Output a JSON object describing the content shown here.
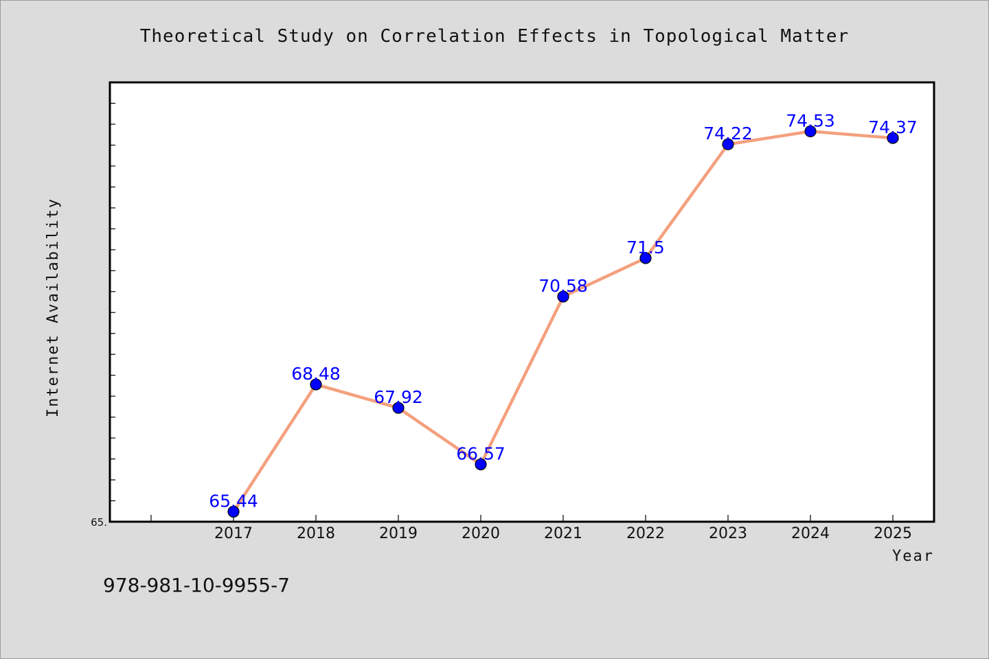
{
  "chart_data": {
    "type": "line",
    "title": "Theoretical Study on Correlation Effects in Topological Matter",
    "xlabel": "Year",
    "ylabel": "Internet Availability",
    "categories": [
      "2017",
      "2018",
      "2019",
      "2020",
      "2021",
      "2022",
      "2023",
      "2024",
      "2025"
    ],
    "series": [
      {
        "values": [
          65.44,
          68.48,
          67.92,
          66.57,
          70.58,
          71.5,
          74.22,
          74.53,
          74.37
        ],
        "data_labels": [
          "65.44",
          "68.48",
          "67.92",
          "66.57",
          "70.58",
          "71.5",
          "74.22",
          "74.53",
          "74.37"
        ],
        "line_color": "#f4a07e",
        "marker_color": "#0000ff"
      }
    ],
    "ylim": [
      65.2,
      75.7
    ],
    "y_tick_labels": [
      "65."
    ],
    "y_minor_ticks": 21,
    "grid": false,
    "legend": "none"
  },
  "footer": {
    "code": "978-981-10-9955-7"
  },
  "colors": {
    "background": "#dcdcdc",
    "plot_background": "#ffffff",
    "line": "#f4a07e",
    "marker": "#0000ff",
    "data_label": "#0000ff"
  }
}
